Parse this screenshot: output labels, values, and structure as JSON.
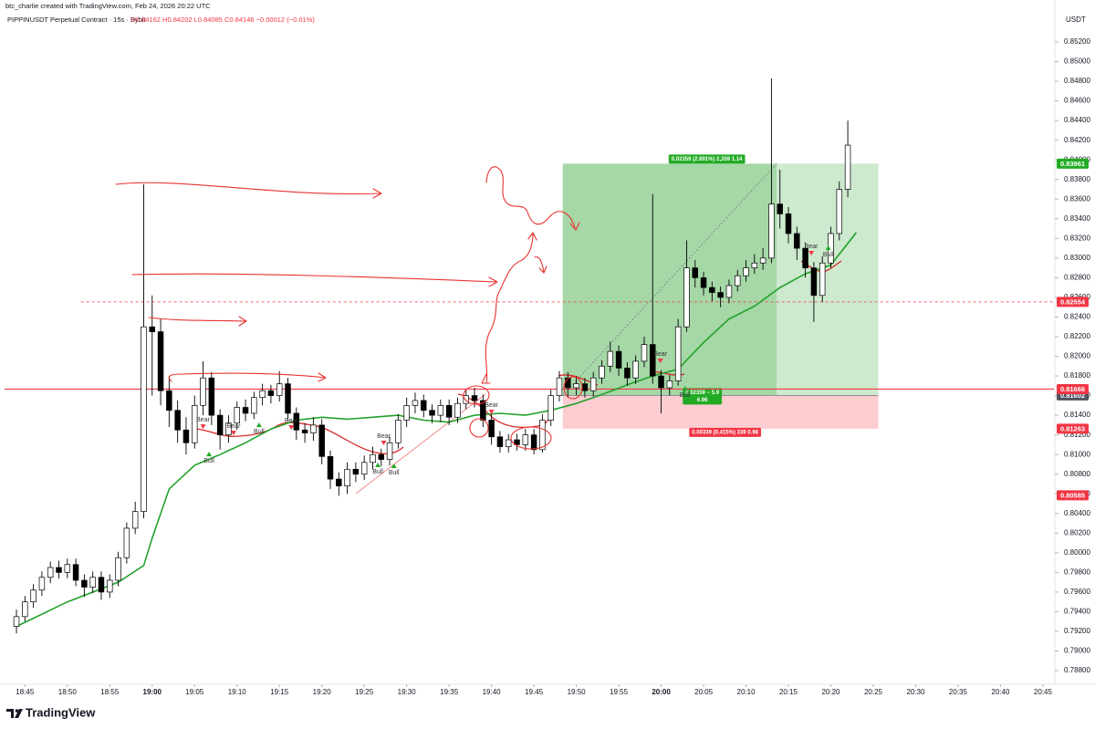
{
  "chart_data": {
    "type": "candlestick",
    "credit": "btc_charlie created with TradingView.com, Feb 24, 2026 20:22 UTC",
    "title": "PIPPINUSDT Perpetual Contract · 15s · Bybit",
    "subtitle": "O0.84162 H0.84202 L0.84085 C0.84146 −0.00012 (−0.01%)",
    "y_unit": "USDT",
    "brand": "TradingView",
    "up_color": "#ffffff",
    "down_color": "#000000",
    "outline_color": "#000000",
    "x": [
      1124,
      1125,
      1126,
      1127,
      1128,
      1129,
      1130,
      1131,
      1132,
      1133,
      1134,
      1135,
      1136,
      1137,
      1138,
      1139,
      1140,
      1141,
      1142,
      1143,
      1144,
      1145,
      1146,
      1147,
      1148,
      1149,
      1150,
      1151,
      1152,
      1153,
      1154,
      1155,
      1156,
      1157,
      1158,
      1159,
      1160,
      1161,
      1162,
      1163,
      1164,
      1165,
      1166,
      1167,
      1168,
      1169,
      1170,
      1171,
      1172,
      1173,
      1174,
      1175,
      1176,
      1177,
      1178,
      1179,
      1180,
      1181,
      1182,
      1183,
      1184,
      1185,
      1186,
      1187,
      1188,
      1189,
      1190,
      1191,
      1192,
      1193,
      1194,
      1195,
      1196,
      1197,
      1198,
      1199,
      1200,
      1201,
      1202,
      1203,
      1204,
      1205,
      1206,
      1207,
      1208,
      1209,
      1210,
      1211,
      1212,
      1213,
      1214,
      1215,
      1216,
      1217,
      1218,
      1219,
      1220,
      1221,
      1222
    ],
    "open": [
      0.7925,
      0.7935,
      0.795,
      0.7962,
      0.7975,
      0.7985,
      0.798,
      0.7988,
      0.7972,
      0.7965,
      0.7975,
      0.796,
      0.7972,
      0.7995,
      0.8025,
      0.8042,
      0.823,
      0.8225,
      0.8165,
      0.8145,
      0.8125,
      0.8112,
      0.815,
      0.8178,
      0.814,
      0.812,
      0.8132,
      0.8148,
      0.8142,
      0.8158,
      0.8165,
      0.816,
      0.8172,
      0.8142,
      0.8125,
      0.8122,
      0.813,
      0.8098,
      0.8075,
      0.8068,
      0.8085,
      0.808,
      0.8092,
      0.81,
      0.8095,
      0.8112,
      0.8135,
      0.815,
      0.8155,
      0.8145,
      0.814,
      0.815,
      0.8138,
      0.8152,
      0.816,
      0.8155,
      0.8135,
      0.8118,
      0.8108,
      0.8115,
      0.811,
      0.812,
      0.8105,
      0.8135,
      0.816,
      0.8178,
      0.8168,
      0.8172,
      0.8165,
      0.8178,
      0.819,
      0.8205,
      0.8188,
      0.8178,
      0.8195,
      0.8212,
      0.818,
      0.8168,
      0.8175,
      0.823,
      0.829,
      0.828,
      0.827,
      0.8265,
      0.826,
      0.8272,
      0.8282,
      0.829,
      0.8295,
      0.83,
      0.8355,
      0.8345,
      0.8325,
      0.831,
      0.829,
      0.8262,
      0.8295,
      0.8325,
      0.837
    ],
    "high": [
      0.7942,
      0.7956,
      0.7968,
      0.7981,
      0.7991,
      0.7992,
      0.7994,
      0.7994,
      0.7978,
      0.7981,
      0.7981,
      0.7978,
      0.8001,
      0.8031,
      0.8052,
      0.8375,
      0.8262,
      0.8238,
      0.818,
      0.8155,
      0.8138,
      0.816,
      0.8195,
      0.8184,
      0.8146,
      0.814,
      0.8154,
      0.8156,
      0.8164,
      0.8172,
      0.8171,
      0.8185,
      0.8178,
      0.8148,
      0.8132,
      0.8138,
      0.8136,
      0.8104,
      0.8082,
      0.8092,
      0.8092,
      0.8099,
      0.8108,
      0.8106,
      0.8118,
      0.8141,
      0.8158,
      0.8163,
      0.8161,
      0.8151,
      0.8156,
      0.8156,
      0.8158,
      0.8166,
      0.8168,
      0.8161,
      0.8141,
      0.8124,
      0.8121,
      0.8121,
      0.8126,
      0.8126,
      0.8141,
      0.8166,
      0.8185,
      0.8184,
      0.818,
      0.8178,
      0.8184,
      0.8196,
      0.8215,
      0.8211,
      0.8194,
      0.8201,
      0.822,
      0.8365,
      0.8186,
      0.8181,
      0.8238,
      0.8318,
      0.8298,
      0.8286,
      0.8276,
      0.8271,
      0.8278,
      0.8288,
      0.8298,
      0.8304,
      0.831,
      0.8483,
      0.839,
      0.8352,
      0.8332,
      0.8316,
      0.8296,
      0.8302,
      0.8332,
      0.8378,
      0.844
    ],
    "low": [
      0.7918,
      0.793,
      0.7944,
      0.7956,
      0.7969,
      0.7974,
      0.7974,
      0.7966,
      0.7955,
      0.7959,
      0.7952,
      0.7954,
      0.7966,
      0.7989,
      0.8019,
      0.8035,
      0.816,
      0.815,
      0.8128,
      0.8112,
      0.81,
      0.8106,
      0.814,
      0.813,
      0.8105,
      0.8112,
      0.8125,
      0.8134,
      0.8136,
      0.815,
      0.8152,
      0.8154,
      0.8135,
      0.8115,
      0.8112,
      0.8114,
      0.809,
      0.8065,
      0.8058,
      0.806,
      0.8072,
      0.8074,
      0.8085,
      0.8088,
      0.8089,
      0.8106,
      0.8128,
      0.8142,
      0.8138,
      0.8132,
      0.8133,
      0.813,
      0.8132,
      0.8146,
      0.8148,
      0.8128,
      0.811,
      0.8102,
      0.8102,
      0.8104,
      0.8104,
      0.81,
      0.8102,
      0.8129,
      0.8154,
      0.8158,
      0.816,
      0.8158,
      0.8159,
      0.8172,
      0.8184,
      0.818,
      0.817,
      0.8172,
      0.8189,
      0.8172,
      0.8142,
      0.816,
      0.817,
      0.8225,
      0.827,
      0.8262,
      0.8256,
      0.825,
      0.8254,
      0.8266,
      0.8276,
      0.8284,
      0.8288,
      0.8295,
      0.833,
      0.8315,
      0.8298,
      0.828,
      0.8235,
      0.8255,
      0.829,
      0.8318,
      0.8362
    ],
    "close": [
      0.7935,
      0.795,
      0.7962,
      0.7975,
      0.7985,
      0.798,
      0.7988,
      0.7972,
      0.7965,
      0.7975,
      0.796,
      0.7972,
      0.7995,
      0.8025,
      0.8042,
      0.823,
      0.8225,
      0.8165,
      0.8145,
      0.8125,
      0.8112,
      0.815,
      0.8178,
      0.814,
      0.812,
      0.8132,
      0.8148,
      0.8142,
      0.8158,
      0.8165,
      0.816,
      0.8172,
      0.8142,
      0.8125,
      0.8122,
      0.813,
      0.8098,
      0.8075,
      0.8068,
      0.8085,
      0.808,
      0.8092,
      0.81,
      0.8095,
      0.8112,
      0.8135,
      0.815,
      0.8155,
      0.8145,
      0.814,
      0.815,
      0.8138,
      0.8152,
      0.816,
      0.8155,
      0.8135,
      0.8118,
      0.8108,
      0.8115,
      0.811,
      0.812,
      0.8105,
      0.8135,
      0.816,
      0.8178,
      0.8168,
      0.8172,
      0.8165,
      0.8178,
      0.819,
      0.8205,
      0.8188,
      0.8178,
      0.8195,
      0.8212,
      0.818,
      0.8168,
      0.8175,
      0.823,
      0.829,
      0.828,
      0.827,
      0.8265,
      0.826,
      0.8272,
      0.8282,
      0.829,
      0.8295,
      0.83,
      0.8355,
      0.8345,
      0.8325,
      0.831,
      0.829,
      0.8262,
      0.8295,
      0.8325,
      0.837,
      0.8415
    ],
    "ema": {
      "color": "#22a12a",
      "x": [
        1124,
        1130,
        1136,
        1139,
        1140,
        1142,
        1145,
        1148,
        1151,
        1154,
        1157,
        1160,
        1163,
        1166,
        1169,
        1172,
        1175,
        1178,
        1181,
        1184,
        1187,
        1190,
        1193,
        1196,
        1199,
        1202,
        1205,
        1208,
        1211,
        1214,
        1217,
        1220,
        1223
      ],
      "values": [
        0.7925,
        0.795,
        0.797,
        0.7987,
        0.8015,
        0.8065,
        0.8089,
        0.81,
        0.8112,
        0.8126,
        0.8135,
        0.8138,
        0.8136,
        0.8138,
        0.814,
        0.8135,
        0.8133,
        0.814,
        0.8142,
        0.814,
        0.8145,
        0.8152,
        0.8161,
        0.8171,
        0.818,
        0.8187,
        0.8214,
        0.8238,
        0.8251,
        0.827,
        0.8284,
        0.8293,
        0.8326
      ]
    },
    "levels": [
      {
        "value": 0.82554,
        "color": "#f23645",
        "style": "dashed",
        "x_start": 1131.6
      },
      {
        "value": 0.81666,
        "color": "#f23645",
        "style": "solid"
      },
      {
        "value": 0.80585,
        "color": "#f23645",
        "style": "none"
      }
    ],
    "position": {
      "x_start": 1188.4,
      "x_mid": 1213.6,
      "x_end": 1225.6,
      "target": 0.83961,
      "entry": 0.81602,
      "stop": 0.81263,
      "target_color": "#22ab24",
      "entry_color": "#50535e",
      "stop_color": "#f23645",
      "target_label": "0.02359 (2.891%) 2,359 1.14",
      "entry_label": [
        "0.02359 − 5.9",
        "6.96"
      ],
      "stop_label": "0.00339 (0.415%) 339 0.98"
    },
    "annotations": [
      {
        "text": "Bear",
        "x": 1146.0,
        "y": 0.81354,
        "color": "#f23645"
      },
      {
        "text": "Bull",
        "x": 1146.7,
        "y": 0.80945,
        "color": "#22ab24"
      },
      {
        "text": "Bear",
        "x": 1149.6,
        "y": 0.81289,
        "color": "#f23645"
      },
      {
        "text": "Bull",
        "x": 1152.6,
        "y": 0.81242,
        "color": "#22ab24"
      },
      {
        "text": "Bear",
        "x": 1156.4,
        "y": 0.81345,
        "color": "#f23645"
      },
      {
        "text": "Bear",
        "x": 1167.3,
        "y": 0.81187,
        "color": "#f23645"
      },
      {
        "text": "Bull",
        "x": 1166.6,
        "y": 0.80834,
        "color": "#22ab24"
      },
      {
        "text": "Bull",
        "x": 1168.5,
        "y": 0.80825,
        "color": "#22ab24"
      },
      {
        "text": "Bear",
        "x": 1180.0,
        "y": 0.81503,
        "color": "#f23645"
      },
      {
        "text": "Bear",
        "x": 1199.9,
        "y": 0.82023,
        "color": "#f23645"
      },
      {
        "text": "Bull",
        "x": 1202.8,
        "y": 0.81614,
        "color": "#22ab24"
      },
      {
        "text": "Bear",
        "x": 1217.7,
        "y": 0.83119,
        "color": "#f23645"
      },
      {
        "text": "Bull",
        "x": 1219.7,
        "y": 0.83045,
        "color": "#22ab24"
      }
    ],
    "xlim": [
      1122.6,
      1246.3
    ],
    "xticks": [
      {
        "value": 1125,
        "label": "18:45"
      },
      {
        "value": 1130,
        "label": "18:50"
      },
      {
        "value": 1135,
        "label": "18:55"
      },
      {
        "value": 1140,
        "label": "19:00"
      },
      {
        "value": 1145,
        "label": "19:05"
      },
      {
        "value": 1150,
        "label": "19:10"
      },
      {
        "value": 1155,
        "label": "19:15"
      },
      {
        "value": 1160,
        "label": "19:20"
      },
      {
        "value": 1165,
        "label": "19:25"
      },
      {
        "value": 1170,
        "label": "19:30"
      },
      {
        "value": 1175,
        "label": "19:35"
      },
      {
        "value": 1180,
        "label": "19:40"
      },
      {
        "value": 1185,
        "label": "19:45"
      },
      {
        "value": 1190,
        "label": "19:50"
      },
      {
        "value": 1195,
        "label": "19:55"
      },
      {
        "value": 1200,
        "label": "20:00"
      },
      {
        "value": 1205,
        "label": "20:05"
      },
      {
        "value": 1210,
        "label": "20:10"
      },
      {
        "value": 1215,
        "label": "20:15"
      },
      {
        "value": 1220,
        "label": "20:20"
      },
      {
        "value": 1225,
        "label": "20:25"
      },
      {
        "value": 1230,
        "label": "20:30"
      },
      {
        "value": 1235,
        "label": "20:35"
      },
      {
        "value": 1240,
        "label": "20:40"
      },
      {
        "value": 1245,
        "label": "20:45"
      }
    ],
    "ylim": [
      0.78661,
      0.85488
    ],
    "yticks": [
      {
        "value": 0.788,
        "label": "0.78800"
      },
      {
        "value": 0.79,
        "label": "0.79000"
      },
      {
        "value": 0.792,
        "label": "0.79200"
      },
      {
        "value": 0.794,
        "label": "0.79400"
      },
      {
        "value": 0.796,
        "label": "0.79600"
      },
      {
        "value": 0.798,
        "label": "0.79800"
      },
      {
        "value": 0.8,
        "label": "0.80000"
      },
      {
        "value": 0.802,
        "label": "0.80200"
      },
      {
        "value": 0.804,
        "label": "0.80400"
      },
      {
        "value": 0.806,
        "label": "0.80600"
      },
      {
        "value": 0.808,
        "label": "0.80800"
      },
      {
        "value": 0.81,
        "label": "0.81000"
      },
      {
        "value": 0.812,
        "label": "0.81200"
      },
      {
        "value": 0.814,
        "label": "0.81400"
      },
      {
        "value": 0.816,
        "label": "0.81600"
      },
      {
        "value": 0.818,
        "label": "0.81800"
      },
      {
        "value": 0.82,
        "label": "0.82000"
      },
      {
        "value": 0.822,
        "label": "0.82200"
      },
      {
        "value": 0.824,
        "label": "0.82400"
      },
      {
        "value": 0.826,
        "label": "0.82600"
      },
      {
        "value": 0.828,
        "label": "0.82800"
      },
      {
        "value": 0.83,
        "label": "0.83000"
      },
      {
        "value": 0.832,
        "label": "0.83200"
      },
      {
        "value": 0.834,
        "label": "0.83400"
      },
      {
        "value": 0.836,
        "label": "0.83600"
      },
      {
        "value": 0.838,
        "label": "0.83800"
      },
      {
        "value": 0.84,
        "label": "0.84000"
      },
      {
        "value": 0.842,
        "label": "0.84200"
      },
      {
        "value": 0.844,
        "label": "0.84400"
      },
      {
        "value": 0.846,
        "label": "0.84600"
      },
      {
        "value": 0.848,
        "label": "0.84800"
      },
      {
        "value": 0.85,
        "label": "0.85000"
      },
      {
        "value": 0.852,
        "label": "0.85200"
      }
    ],
    "grid": false
  }
}
